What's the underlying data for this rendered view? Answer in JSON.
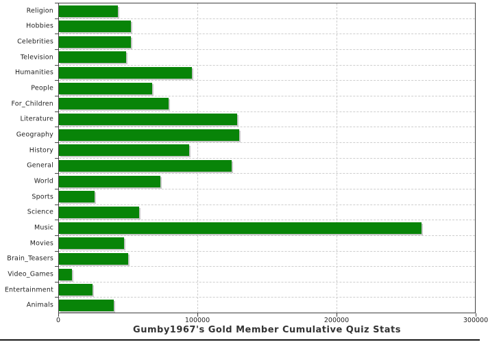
{
  "chart_data": {
    "type": "bar",
    "orientation": "horizontal",
    "title": "Gumby1967's Gold Member Cumulative Quiz Stats",
    "xlabel": "",
    "ylabel": "",
    "categories": [
      "Religion",
      "Hobbies",
      "Celebrities",
      "Television",
      "Humanities",
      "People",
      "For_Children",
      "Literature",
      "Geography",
      "History",
      "General",
      "World",
      "Sports",
      "Science",
      "Music",
      "Movies",
      "Brain_Teasers",
      "Video_Games",
      "Entertainment",
      "Animals"
    ],
    "values": [
      42500,
      52000,
      52000,
      48500,
      96000,
      67000,
      79000,
      128500,
      130000,
      94000,
      124500,
      73000,
      25500,
      58000,
      261500,
      47000,
      50000,
      9500,
      24000,
      39500
    ],
    "xlim": [
      0,
      300000
    ],
    "x_ticks": [
      {
        "value": 0,
        "label": "0"
      },
      {
        "value": 100000,
        "label": "100000"
      },
      {
        "value": 200000,
        "label": "200000"
      },
      {
        "value": 300000,
        "label": "300000"
      }
    ],
    "grid": "dashed, horizontal at category boundaries and vertical at x ticks",
    "legend": "none",
    "bar_color": "#088408",
    "bar_shadow_color": "#c9c9c9",
    "grid_color": "#cdcdcd",
    "axis_color": "#3f3f3f",
    "label_color": "#1f1f1f",
    "title_color": "#333333"
  }
}
